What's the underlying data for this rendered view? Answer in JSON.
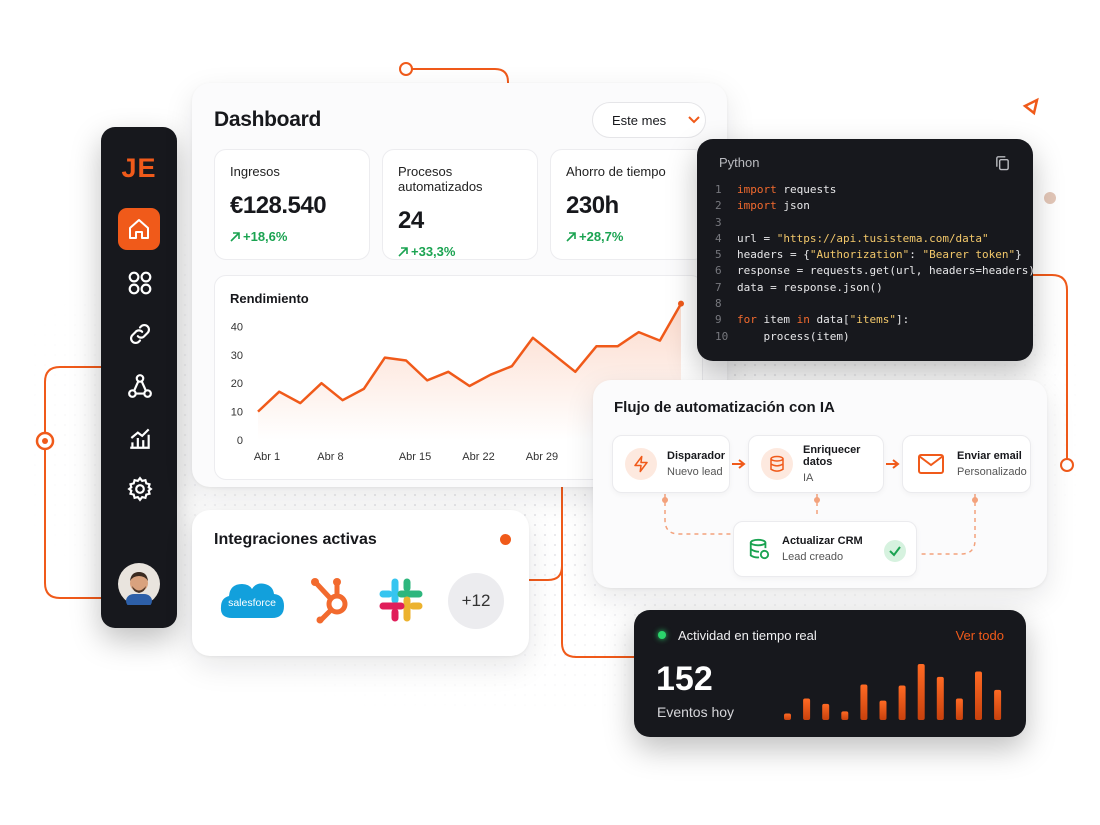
{
  "brand": {
    "logo": "JE"
  },
  "dashboard": {
    "title": "Dashboard",
    "period": "Este mes",
    "kpis": [
      {
        "label": "Ingresos",
        "value": "€128.540",
        "change": "+18,6%"
      },
      {
        "label": "Procesos automatizados",
        "value": "24",
        "change": "+33,3%"
      },
      {
        "label": "Ahorro de tiempo",
        "value": "230h",
        "change": "+28,7%"
      }
    ]
  },
  "chart_data": [
    {
      "type": "line",
      "title": "Rendimiento",
      "categories": [
        "Abr 1",
        null,
        null,
        "Abr 8",
        null,
        null,
        null,
        "Abr 15",
        null,
        null,
        "Abr 22",
        null,
        null,
        "Abr 29",
        null,
        null,
        null,
        null,
        null,
        null,
        null
      ],
      "values": [
        10,
        17,
        13,
        20,
        14,
        18,
        29,
        28,
        21,
        24,
        19,
        23,
        26,
        36,
        30,
        24,
        33,
        33,
        38,
        35,
        48
      ],
      "color": "#f05a1a",
      "ylim": [
        0,
        50
      ],
      "yticks": [
        0,
        10,
        20,
        30,
        40
      ],
      "grid": false
    },
    {
      "type": "bar",
      "values": [
        6,
        20,
        15,
        8,
        33,
        18,
        32,
        52,
        40,
        20,
        45,
        28
      ],
      "color": "#f05a1a"
    }
  ],
  "code": {
    "language": "Python",
    "lines": [
      {
        "n": 1,
        "tokens": [
          {
            "t": "import",
            "k": "kw"
          },
          {
            "t": " requests"
          }
        ]
      },
      {
        "n": 2,
        "tokens": [
          {
            "t": "import",
            "k": "kw"
          },
          {
            "t": " json"
          }
        ]
      },
      {
        "n": 3,
        "tokens": []
      },
      {
        "n": 4,
        "tokens": [
          {
            "t": "url = "
          },
          {
            "t": "\"https://api.tusistema.com/data\"",
            "k": "str"
          }
        ]
      },
      {
        "n": 5,
        "tokens": [
          {
            "t": "headers = {"
          },
          {
            "t": "\"Authorization\"",
            "k": "str"
          },
          {
            "t": ": "
          },
          {
            "t": "\"Bearer token\"",
            "k": "str"
          },
          {
            "t": "}"
          }
        ]
      },
      {
        "n": 6,
        "tokens": [
          {
            "t": "response = requests.get(url, headers=headers)"
          }
        ]
      },
      {
        "n": 7,
        "tokens": [
          {
            "t": "data = response.json()"
          }
        ]
      },
      {
        "n": 8,
        "tokens": []
      },
      {
        "n": 9,
        "tokens": [
          {
            "t": "for",
            "k": "kw"
          },
          {
            "t": " item "
          },
          {
            "t": "in",
            "k": "kw"
          },
          {
            "t": " data["
          },
          {
            "t": "\"items\"",
            "k": "str"
          },
          {
            "t": "]:"
          }
        ]
      },
      {
        "n": 10,
        "tokens": [
          {
            "t": "    process(item)"
          }
        ]
      }
    ]
  },
  "flow": {
    "title": "Flujo de automatización con IA",
    "nodes": [
      {
        "title": "Disparador",
        "subtitle": "Nuevo lead"
      },
      {
        "title": "Enriquecer datos",
        "subtitle": "IA"
      },
      {
        "title": "Enviar email",
        "subtitle": "Personalizado"
      },
      {
        "title": "Actualizar CRM",
        "subtitle": "Lead creado"
      }
    ]
  },
  "integrations": {
    "title": "Integraciones activas",
    "apps": [
      "salesforce"
    ],
    "more": "+12"
  },
  "activity": {
    "title": "Actividad en tiempo real",
    "link": "Ver todo",
    "count": 152,
    "count_label": "Eventos hoy"
  }
}
